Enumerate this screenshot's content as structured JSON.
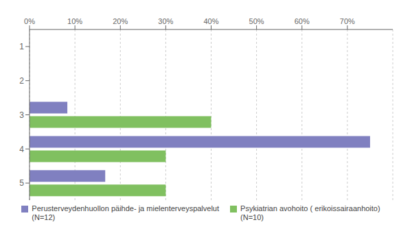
{
  "chart_data": {
    "type": "bar",
    "orientation": "horizontal",
    "categories": [
      "1",
      "2",
      "3",
      "4",
      "5"
    ],
    "series": [
      {
        "name": "Perusterveydenhuollon päihde- ja mielenterveyspalvelut\n(N=12)",
        "color": "#8080c0",
        "values": [
          0,
          0,
          8.33,
          75.0,
          16.67
        ]
      },
      {
        "name": "Psykiatrian avohoito ( erikoissairaanhoito)\n(N=10)",
        "color": "#80c060",
        "values": [
          0,
          0,
          40.0,
          30.0,
          30.0
        ]
      }
    ],
    "xlim": [
      0,
      80
    ],
    "xticks": [
      {
        "value": 0,
        "label": "0%"
      },
      {
        "value": 10,
        "label": "10%"
      },
      {
        "value": 20,
        "label": "20%"
      },
      {
        "value": 30,
        "label": "30%"
      },
      {
        "value": 40,
        "label": "40%"
      },
      {
        "value": 50,
        "label": "50%"
      },
      {
        "value": 60,
        "label": "60%"
      },
      {
        "value": 70,
        "label": "70%"
      }
    ],
    "grid": true,
    "legend": "bottom"
  }
}
